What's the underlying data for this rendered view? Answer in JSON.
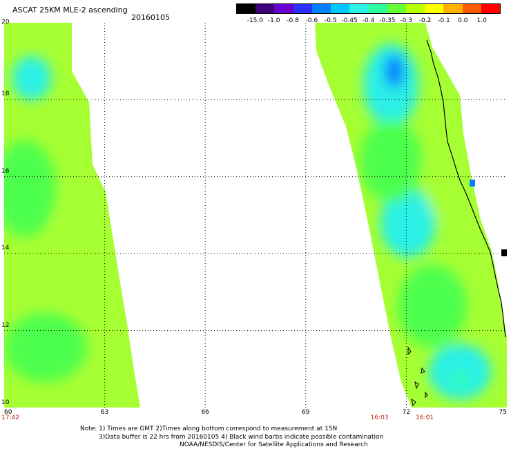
{
  "header": {
    "title": "ASCAT 25KM MLE-2 ascending",
    "date": "20160105"
  },
  "colorbar": {
    "labels": [
      "-15.0",
      "-1.0",
      "-0.8",
      "-0.6",
      "-0.5",
      "-0.45",
      "-0.4",
      "-0.35",
      "-0.3",
      "-0.2",
      "-0.1",
      "0.0",
      "1.0"
    ],
    "colors": [
      "#000000",
      "#3a007a",
      "#6a00d0",
      "#2e2eff",
      "#0080ff",
      "#00c8ff",
      "#2af0e6",
      "#2aff9a",
      "#66ff33",
      "#b8ff00",
      "#ffff00",
      "#ffb000",
      "#ff5a00",
      "#ff0000"
    ]
  },
  "map": {
    "lon_range": [
      60,
      75
    ],
    "lat_range": [
      10,
      20
    ],
    "x_ticks": [
      "60",
      "63",
      "66",
      "69",
      "72",
      "75"
    ],
    "y_ticks": [
      "20",
      "18",
      "16",
      "14",
      "12",
      "10"
    ],
    "pass_times": [
      {
        "label": "17:42",
        "lon": 60.0
      },
      {
        "label": "16:03",
        "lon": 71.2
      },
      {
        "label": "16:01",
        "lon": 72.55
      }
    ]
  },
  "footer": {
    "note_line1": "Note: 1) Times are GMT 2)Times along bottom correspond to measurement at 15N",
    "note_line2": "3)Data buffer is 22 hrs from 20160105 4) Black wind barbs indicate possible contamination",
    "credit": "NOAA/NESDIS/Center for Satellite Applications and Research"
  },
  "style": {
    "land_fill": "#ffffff",
    "swath_base": "#a6ff33",
    "swath_mid": "#4dff4d",
    "swath_low": "#33ffb3",
    "swath_cyan": "#2af0e6",
    "swath_blue": "#0080ff",
    "time_label_color": "#c0200a"
  }
}
